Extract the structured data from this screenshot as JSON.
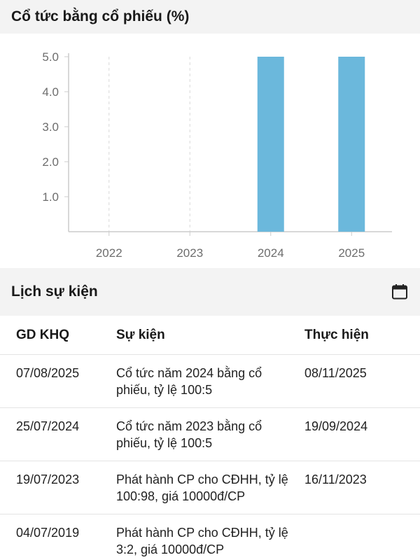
{
  "chart_section": {
    "title": "Cổ tức bằng cổ phiếu (%)"
  },
  "chart_data": {
    "type": "bar",
    "categories": [
      "2022",
      "2023",
      "2024",
      "2025"
    ],
    "values": [
      0,
      0,
      5.0,
      5.0
    ],
    "title": "Cổ tức bằng cổ phiếu (%)",
    "xlabel": "",
    "ylabel": "",
    "ylim": [
      0,
      5
    ],
    "yticks": [
      "1.0",
      "2.0",
      "3.0",
      "4.0",
      "5.0"
    ],
    "grid": true,
    "bar_color": "#6bb8dc"
  },
  "events_section": {
    "title": "Lịch sự kiện",
    "icon": "calendar-icon",
    "columns": {
      "date": "GD KHQ",
      "event": "Sự kiện",
      "done": "Thực hiện"
    },
    "rows": [
      {
        "date": "07/08/2025",
        "event": "Cổ tức năm 2024 bằng cổ phiếu, tỷ lệ 100:5",
        "done": "08/11/2025"
      },
      {
        "date": "25/07/2024",
        "event": "Cổ tức năm 2023 bằng cổ phiếu, tỷ lệ 100:5",
        "done": "19/09/2024"
      },
      {
        "date": "19/07/2023",
        "event": "Phát hành CP cho CĐHH, tỷ lệ 100:98, giá 10000đ/CP",
        "done": "16/11/2023"
      },
      {
        "date": "04/07/2019",
        "event": "Phát hành CP cho CĐHH, tỷ lệ 3:2, giá 10000đ/CP",
        "done": ""
      }
    ]
  }
}
